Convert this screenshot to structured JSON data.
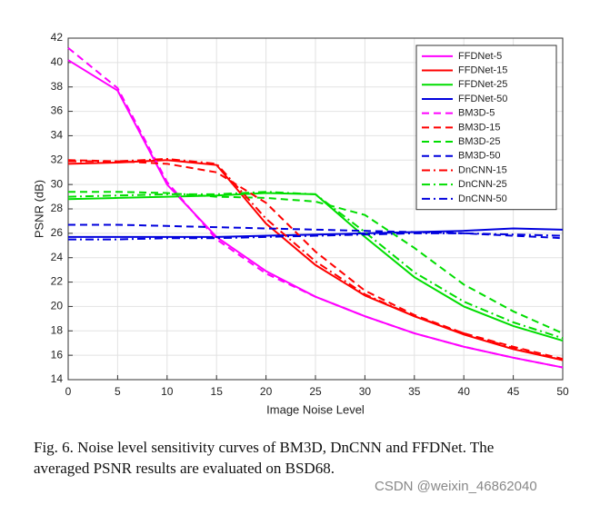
{
  "chart_data": {
    "type": "line",
    "xlabel": "Image Noise Level",
    "ylabel": "PSNR (dB)",
    "x": [
      0,
      5,
      10,
      15,
      20,
      25,
      30,
      35,
      40,
      45,
      50
    ],
    "xlim": [
      0,
      50
    ],
    "xticks": [
      0,
      5,
      10,
      15,
      20,
      25,
      30,
      35,
      40,
      45,
      50
    ],
    "ylim": [
      14,
      42
    ],
    "yticks": [
      14,
      16,
      18,
      20,
      22,
      24,
      26,
      28,
      30,
      32,
      34,
      36,
      38,
      40,
      42
    ],
    "grid": true,
    "legend": "top-right",
    "series": [
      {
        "name": "FFDNet-5",
        "color": "#ff00ff",
        "style": "solid",
        "values": [
          40.2,
          37.7,
          30.0,
          25.7,
          22.9,
          20.8,
          19.2,
          17.8,
          16.7,
          15.8,
          15.0
        ]
      },
      {
        "name": "FFDNet-15",
        "color": "#ff0000",
        "style": "solid",
        "values": [
          31.7,
          31.8,
          32.0,
          31.6,
          26.8,
          23.4,
          20.9,
          19.2,
          17.7,
          16.5,
          15.6
        ]
      },
      {
        "name": "FFDNet-25",
        "color": "#00dd00",
        "style": "solid",
        "values": [
          28.8,
          28.9,
          29.0,
          29.1,
          29.3,
          29.2,
          25.7,
          22.4,
          20.0,
          18.4,
          17.2
        ]
      },
      {
        "name": "FFDNet-50",
        "color": "#0000dd",
        "style": "solid",
        "values": [
          25.7,
          25.7,
          25.7,
          25.7,
          25.8,
          25.9,
          26.0,
          26.1,
          26.2,
          26.4,
          26.3
        ]
      },
      {
        "name": "BM3D-5",
        "color": "#ff00ff",
        "style": "dashed",
        "values": [
          41.2,
          37.9,
          30.2,
          25.5,
          22.7,
          20.8,
          19.2,
          17.8,
          16.7,
          15.8,
          15.0
        ]
      },
      {
        "name": "BM3D-15",
        "color": "#ff0000",
        "style": "dashed",
        "values": [
          32.0,
          31.9,
          31.7,
          31.0,
          28.5,
          24.5,
          21.3,
          19.3,
          17.8,
          16.7,
          15.7
        ]
      },
      {
        "name": "BM3D-25",
        "color": "#00dd00",
        "style": "dashed",
        "values": [
          29.4,
          29.4,
          29.3,
          29.0,
          28.9,
          28.6,
          27.5,
          24.8,
          21.8,
          19.6,
          17.8
        ]
      },
      {
        "name": "BM3D-50",
        "color": "#0000dd",
        "style": "dashed",
        "values": [
          26.7,
          26.7,
          26.6,
          26.5,
          26.4,
          26.3,
          26.2,
          26.1,
          26.0,
          25.8,
          25.6
        ]
      },
      {
        "name": "DnCNN-15",
        "color": "#ff0000",
        "style": "dashdot",
        "values": [
          31.9,
          31.9,
          32.1,
          31.7,
          27.2,
          23.7,
          21.0,
          19.2,
          17.8,
          16.6,
          15.6
        ]
      },
      {
        "name": "DnCNN-25",
        "color": "#00dd00",
        "style": "dashdot",
        "values": [
          29.0,
          29.1,
          29.2,
          29.2,
          29.4,
          29.2,
          26.1,
          22.8,
          20.4,
          18.7,
          17.4
        ]
      },
      {
        "name": "DnCNN-50",
        "color": "#0000dd",
        "style": "dashdot",
        "values": [
          25.5,
          25.5,
          25.6,
          25.6,
          25.7,
          25.8,
          25.9,
          26.0,
          26.0,
          25.9,
          25.8
        ]
      }
    ]
  },
  "caption": {
    "line1": "Fig. 6.  Noise level sensitivity curves of BM3D, DnCNN and FFDNet. The",
    "line2": "averaged PSNR results are evaluated on BSD68."
  },
  "watermark": "CSDN @weixin_46862040"
}
